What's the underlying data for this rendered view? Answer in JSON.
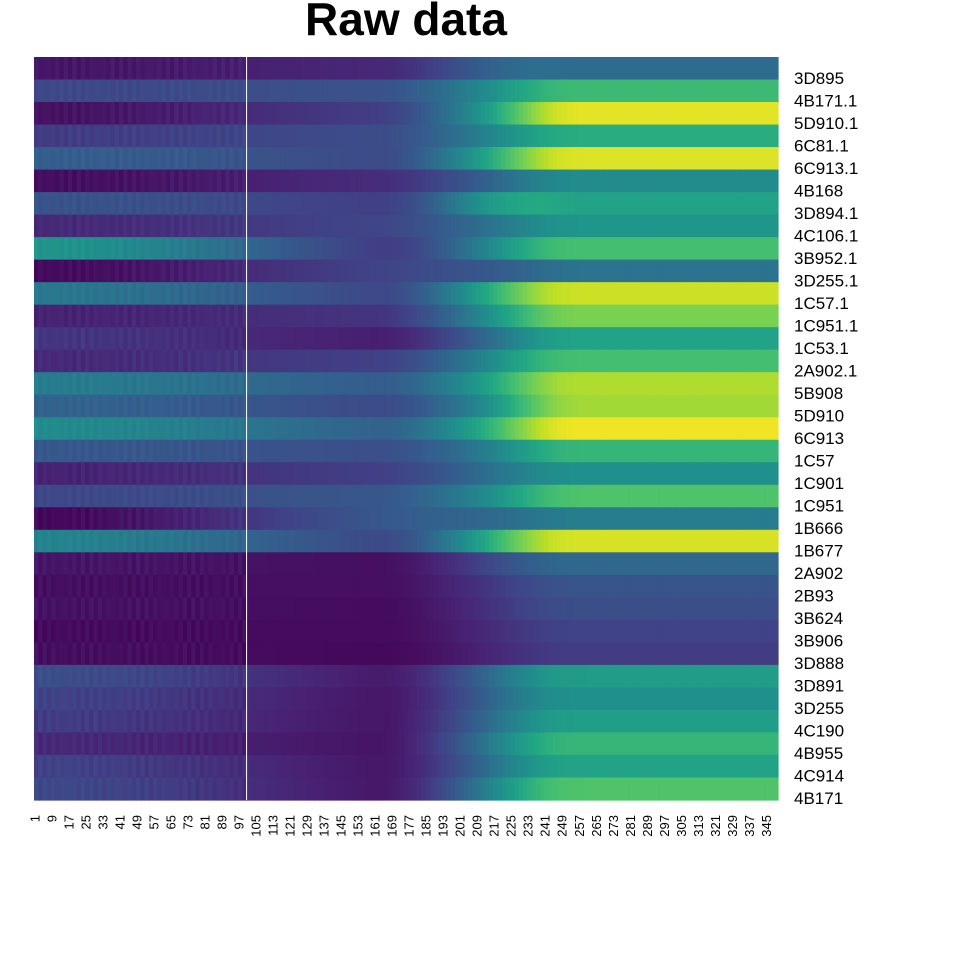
{
  "chart_data": {
    "type": "heatmap",
    "title": "Raw data",
    "colormap": "viridis",
    "colors": {
      "low": "#440154",
      "mid": "#21918c",
      "high": "#fde725",
      "separator": "#ffffff"
    },
    "n_columns": 350,
    "separator_after_column": 100,
    "column_tick_labels": [
      "1",
      "9",
      "17",
      "25",
      "33",
      "41",
      "49",
      "57",
      "65",
      "73",
      "81",
      "89",
      "97",
      "105",
      "113",
      "121",
      "129",
      "137",
      "145",
      "153",
      "161",
      "169",
      "177",
      "185",
      "193",
      "201",
      "209",
      "217",
      "225",
      "233",
      "241",
      "249",
      "257",
      "265",
      "273",
      "281",
      "289",
      "297",
      "305",
      "313",
      "321",
      "329",
      "337",
      "345"
    ],
    "row_labels": [
      "3D895",
      "4B171.1",
      "5D910.1",
      "6C81.1",
      "6C913.1",
      "4B168",
      "3D894.1",
      "4C106.1",
      "3B952.1",
      "3D255.1",
      "1C57.1",
      "1C951.1",
      "1C53.1",
      "2A902.1",
      "5B908",
      "5D910",
      "6C913",
      "1C57",
      "1C901",
      "1C951",
      "1B666",
      "1B677",
      "2A902",
      "2B93",
      "3B624",
      "3B906",
      "3D888",
      "3D891",
      "3D255",
      "4C190",
      "4B955",
      "4C914",
      "4B171"
    ],
    "row_profiles": [
      {
        "baseline": [
          0.06,
          0.12
        ],
        "final": [
          0.42,
          0.35
        ]
      },
      {
        "baseline": [
          0.22,
          0.26
        ],
        "final": [
          0.6,
          0.68
        ]
      },
      {
        "baseline": [
          0.05,
          0.2
        ],
        "final": [
          0.72,
          0.96
        ]
      },
      {
        "baseline": [
          0.18,
          0.24
        ],
        "final": [
          0.55,
          0.62
        ]
      },
      {
        "baseline": [
          0.3,
          0.22
        ],
        "final": [
          0.78,
          0.95
        ]
      },
      {
        "baseline": [
          0.04,
          0.14
        ],
        "final": [
          0.4,
          0.48
        ]
      },
      {
        "baseline": [
          0.26,
          0.18
        ],
        "final": [
          0.74,
          0.58
        ]
      },
      {
        "baseline": [
          0.12,
          0.22
        ],
        "final": [
          0.45,
          0.52
        ]
      },
      {
        "baseline": [
          0.52,
          0.15
        ],
        "final": [
          0.62,
          0.7
        ]
      },
      {
        "baseline": [
          0.03,
          0.22
        ],
        "final": [
          0.3,
          0.38
        ]
      },
      {
        "baseline": [
          0.4,
          0.2
        ],
        "final": [
          0.82,
          0.92
        ]
      },
      {
        "baseline": [
          0.1,
          0.16
        ],
        "final": [
          0.66,
          0.8
        ]
      },
      {
        "baseline": [
          0.16,
          0.08
        ],
        "final": [
          0.48,
          0.58
        ]
      },
      {
        "baseline": [
          0.12,
          0.2
        ],
        "final": [
          0.6,
          0.7
        ]
      },
      {
        "baseline": [
          0.42,
          0.28
        ],
        "final": [
          0.72,
          0.88
        ]
      },
      {
        "baseline": [
          0.32,
          0.22
        ],
        "final": [
          0.62,
          0.86
        ]
      },
      {
        "baseline": [
          0.48,
          0.3
        ],
        "final": [
          0.8,
          0.98
        ]
      },
      {
        "baseline": [
          0.28,
          0.24
        ],
        "final": [
          0.52,
          0.66
        ]
      },
      {
        "baseline": [
          0.1,
          0.2
        ],
        "final": [
          0.45,
          0.5
        ]
      },
      {
        "baseline": [
          0.22,
          0.28
        ],
        "final": [
          0.58,
          0.72
        ]
      },
      {
        "baseline": [
          0.02,
          0.3
        ],
        "final": [
          0.35,
          0.42
        ]
      },
      {
        "baseline": [
          0.45,
          0.2
        ],
        "final": [
          0.82,
          0.94
        ]
      },
      {
        "baseline": [
          0.06,
          0.04
        ],
        "final": [
          0.3,
          0.34
        ]
      },
      {
        "baseline": [
          0.04,
          0.04
        ],
        "final": [
          0.22,
          0.26
        ]
      },
      {
        "baseline": [
          0.05,
          0.03
        ],
        "final": [
          0.2,
          0.24
        ]
      },
      {
        "baseline": [
          0.03,
          0.03
        ],
        "final": [
          0.17,
          0.2
        ]
      },
      {
        "baseline": [
          0.04,
          0.02
        ],
        "final": [
          0.15,
          0.18
        ]
      },
      {
        "baseline": [
          0.24,
          0.06
        ],
        "final": [
          0.48,
          0.55
        ]
      },
      {
        "baseline": [
          0.2,
          0.05
        ],
        "final": [
          0.45,
          0.5
        ]
      },
      {
        "baseline": [
          0.18,
          0.05
        ],
        "final": [
          0.5,
          0.56
        ]
      },
      {
        "baseline": [
          0.12,
          0.05
        ],
        "final": [
          0.58,
          0.66
        ]
      },
      {
        "baseline": [
          0.2,
          0.05
        ],
        "final": [
          0.52,
          0.58
        ]
      },
      {
        "baseline": [
          0.22,
          0.05
        ],
        "final": [
          0.64,
          0.72
        ]
      }
    ]
  }
}
